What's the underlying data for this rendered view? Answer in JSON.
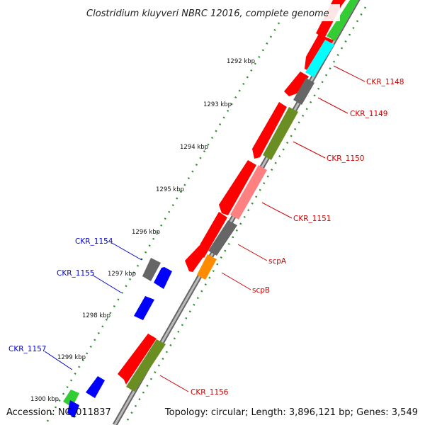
{
  "title": "Clostridium kluyveri NBRC 12016, complete genome",
  "footer": {
    "accession": "Accession: NC_011837",
    "summary": "Topology: circular; Length: 3,896,121 bp; Genes: 3,549"
  },
  "ticks": [
    {
      "label": "1292 kbp"
    },
    {
      "label": "1293 kbp"
    },
    {
      "label": "1294 kbp"
    },
    {
      "label": "1295 kbp"
    },
    {
      "label": "1296 kbp"
    },
    {
      "label": "1297 kbp"
    },
    {
      "label": "1298 kbp"
    },
    {
      "label": "1299 kbp"
    },
    {
      "label": "1300 kbp"
    }
  ],
  "gene_labels": {
    "forward": [
      "CKR_1148",
      "CKR_1149",
      "CKR_1150",
      "CKR_1151",
      "scpA",
      "scpB",
      "CKR_1156"
    ],
    "reverse": [
      "CKR_1154",
      "CKR_1155",
      "CKR_1157"
    ]
  },
  "colors": {
    "cds": "#ff0000",
    "forward_label": "#cc0000",
    "reverse_label": "#0000cc",
    "reverse_gene": "#0000ff",
    "green_gene": "#33cc33",
    "cyan_gene": "#00ffff",
    "grey_gene": "#666666",
    "olive_gene": "#6b8e23",
    "pink_gene": "#ff8080",
    "orange_gene": "#ff8c00",
    "tick": "#2e8b2e",
    "backbone": "#888888"
  }
}
